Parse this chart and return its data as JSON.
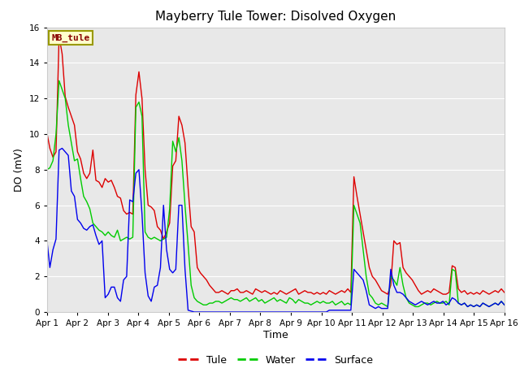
{
  "title": "Mayberry Tule Tower: Disolved Oxygen",
  "ylabel": "DO (mV)",
  "xlabel": "Time",
  "ylim": [
    0,
    16
  ],
  "xlim": [
    0,
    15
  ],
  "xtick_labels": [
    "Apr 1",
    "Apr 2",
    "Apr 3",
    "Apr 4",
    "Apr 5",
    "Apr 6",
    "Apr 7",
    "Apr 8",
    "Apr 9",
    "Apr 10",
    "Apr 11",
    "Apr 12",
    "Apr 13",
    "Apr 14",
    "Apr 15",
    "Apr 16"
  ],
  "xtick_positions": [
    0,
    1,
    2,
    3,
    4,
    5,
    6,
    7,
    8,
    9,
    10,
    11,
    12,
    13,
    14,
    15
  ],
  "background_color": "#e8e8e8",
  "legend_label": "MB_tule",
  "legend_facecolor": "#ffffcc",
  "legend_edgecolor": "#999900",
  "legend_text_color": "#880000",
  "tule_color": "#dd0000",
  "water_color": "#00cc00",
  "surface_color": "#0000ee",
  "tule": [
    10.1,
    9.2,
    8.7,
    9.0,
    15.5,
    14.5,
    12.1,
    11.5,
    11.0,
    10.5,
    9.0,
    8.6,
    7.8,
    7.5,
    7.8,
    9.1,
    7.4,
    7.3,
    7.0,
    7.5,
    7.3,
    7.4,
    7.0,
    6.5,
    6.4,
    5.7,
    5.5,
    5.6,
    5.5,
    12.2,
    13.5,
    12.0,
    8.0,
    6.0,
    5.9,
    5.7,
    4.8,
    4.6,
    4.1,
    4.5,
    5.0,
    8.2,
    8.5,
    11.0,
    10.5,
    9.5,
    7.0,
    4.8,
    4.5,
    2.5,
    2.2,
    2.0,
    1.8,
    1.5,
    1.3,
    1.1,
    1.1,
    1.2,
    1.1,
    1.0,
    1.2,
    1.2,
    1.3,
    1.1,
    1.1,
    1.2,
    1.1,
    1.0,
    1.3,
    1.2,
    1.1,
    1.2,
    1.1,
    1.0,
    1.1,
    1.0,
    1.2,
    1.1,
    1.0,
    1.1,
    1.2,
    1.3,
    1.0,
    1.1,
    1.2,
    1.1,
    1.1,
    1.0,
    1.1,
    1.0,
    1.1,
    1.0,
    1.2,
    1.1,
    1.0,
    1.1,
    1.2,
    1.1,
    1.3,
    1.1,
    7.6,
    6.5,
    5.5,
    4.5,
    3.5,
    2.5,
    2.0,
    1.8,
    1.5,
    1.2,
    1.1,
    1.0,
    1.5,
    4.0,
    3.8,
    3.9,
    2.5,
    2.2,
    2.0,
    1.8,
    1.5,
    1.2,
    1.0,
    1.1,
    1.2,
    1.1,
    1.3,
    1.2,
    1.1,
    1.0,
    1.0,
    1.1,
    2.6,
    2.5,
    1.3,
    1.1,
    1.2,
    1.0,
    1.1,
    1.0,
    1.1,
    1.0,
    1.2,
    1.1,
    1.0,
    1.1,
    1.2,
    1.1,
    1.3,
    1.1
  ],
  "water": [
    8.0,
    8.1,
    8.5,
    10.0,
    13.0,
    12.5,
    12.0,
    10.5,
    9.5,
    8.5,
    8.6,
    7.5,
    6.5,
    6.2,
    5.8,
    5.0,
    4.8,
    4.6,
    4.5,
    4.3,
    4.5,
    4.3,
    4.2,
    4.6,
    4.0,
    4.1,
    4.2,
    4.1,
    4.2,
    11.5,
    11.8,
    11.0,
    4.5,
    4.2,
    4.1,
    4.2,
    4.1,
    4.0,
    4.1,
    4.2,
    5.8,
    9.6,
    9.0,
    9.8,
    8.5,
    6.0,
    3.8,
    1.5,
    0.8,
    0.6,
    0.5,
    0.4,
    0.4,
    0.5,
    0.5,
    0.6,
    0.6,
    0.5,
    0.6,
    0.7,
    0.8,
    0.7,
    0.7,
    0.6,
    0.7,
    0.8,
    0.6,
    0.7,
    0.8,
    0.6,
    0.7,
    0.5,
    0.6,
    0.7,
    0.8,
    0.6,
    0.7,
    0.6,
    0.5,
    0.8,
    0.7,
    0.5,
    0.7,
    0.6,
    0.5,
    0.5,
    0.4,
    0.5,
    0.6,
    0.5,
    0.6,
    0.5,
    0.5,
    0.6,
    0.4,
    0.5,
    0.6,
    0.4,
    0.5,
    0.4,
    6.0,
    5.5,
    5.0,
    3.5,
    2.0,
    1.0,
    0.8,
    0.5,
    0.4,
    0.5,
    0.4,
    0.3,
    2.0,
    1.8,
    1.5,
    2.5,
    1.5,
    0.8,
    0.5,
    0.4,
    0.3,
    0.3,
    0.4,
    0.5,
    0.5,
    0.4,
    0.5,
    0.6,
    0.5,
    0.5,
    0.6,
    0.4,
    2.4,
    2.3,
    0.5,
    0.4,
    0.5,
    0.3,
    0.4,
    0.3,
    0.4,
    0.3,
    0.5,
    0.4,
    0.3,
    0.4,
    0.5,
    0.4,
    0.6,
    0.4
  ],
  "surface": [
    4.1,
    2.5,
    3.5,
    4.1,
    9.1,
    9.2,
    9.0,
    8.8,
    6.8,
    6.5,
    5.2,
    5.0,
    4.7,
    4.6,
    4.8,
    4.9,
    4.3,
    3.8,
    4.0,
    0.8,
    1.0,
    1.4,
    1.4,
    0.8,
    0.6,
    1.8,
    2.0,
    6.3,
    6.2,
    7.8,
    8.0,
    5.5,
    2.2,
    0.9,
    0.6,
    1.4,
    1.5,
    2.5,
    6.0,
    3.5,
    2.4,
    2.2,
    2.4,
    6.0,
    6.0,
    2.4,
    0.1,
    0.05,
    0.0,
    0.0,
    0.0,
    0.0,
    0.0,
    0.0,
    0.0,
    0.0,
    0.0,
    0.0,
    0.0,
    0.0,
    0.0,
    0.0,
    0.0,
    0.0,
    0.0,
    0.0,
    0.0,
    0.0,
    0.0,
    0.0,
    0.0,
    0.0,
    0.0,
    0.0,
    0.0,
    0.0,
    0.0,
    0.0,
    0.0,
    0.0,
    0.0,
    0.0,
    0.0,
    0.0,
    0.0,
    0.0,
    0.0,
    0.0,
    0.0,
    0.0,
    0.0,
    0.0,
    0.1,
    0.1,
    0.1,
    0.1,
    0.1,
    0.1,
    0.1,
    0.1,
    2.4,
    2.2,
    2.0,
    1.8,
    1.2,
    0.4,
    0.3,
    0.2,
    0.3,
    0.2,
    0.2,
    0.2,
    2.4,
    1.5,
    1.1,
    1.1,
    1.0,
    0.8,
    0.6,
    0.5,
    0.4,
    0.5,
    0.6,
    0.5,
    0.4,
    0.5,
    0.6,
    0.5,
    0.5,
    0.6,
    0.4,
    0.5,
    0.8,
    0.7,
    0.5,
    0.4,
    0.5,
    0.3,
    0.4,
    0.3,
    0.4,
    0.3,
    0.5,
    0.4,
    0.3,
    0.4,
    0.5,
    0.4,
    0.6,
    0.4
  ]
}
